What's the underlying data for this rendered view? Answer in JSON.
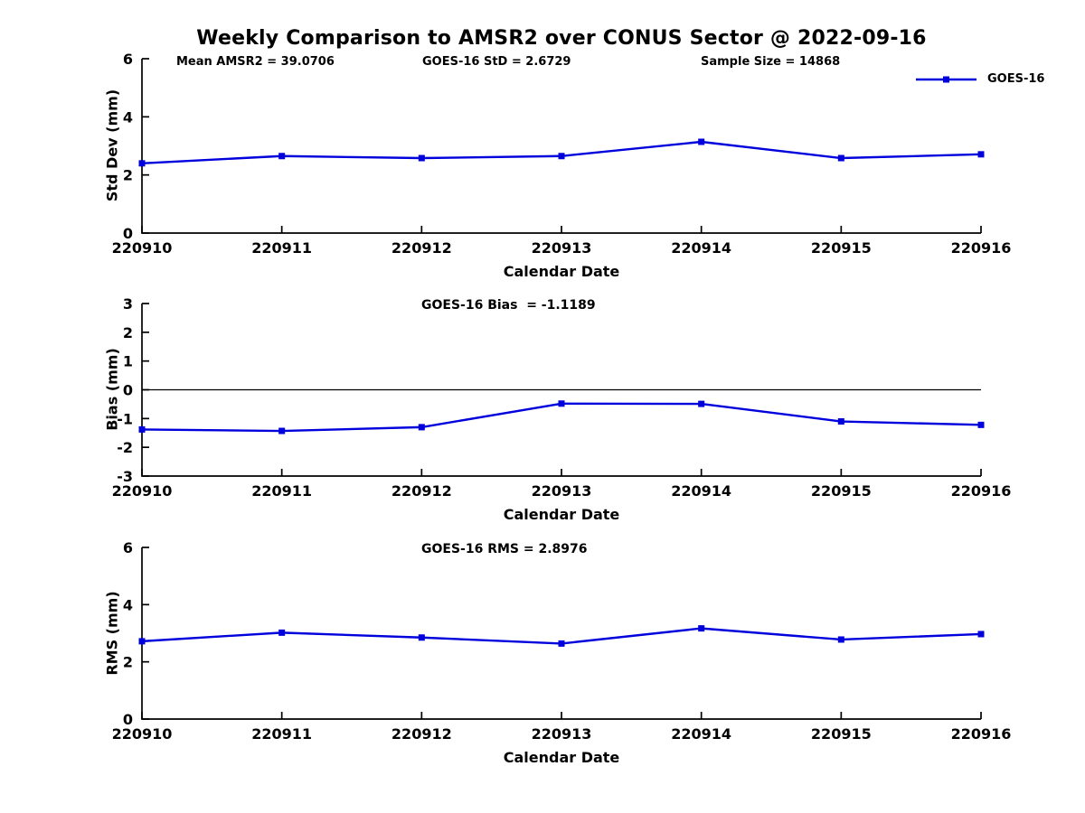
{
  "title": "Weekly Comparison to AMSR2 over CONUS Sector @ 2022-09-16",
  "colors": {
    "series": "#0000dd",
    "axis": "#000000",
    "text": "#000000",
    "background": "#ffffff"
  },
  "legend": {
    "label": "GOES-16"
  },
  "chart_data": [
    {
      "type": "line",
      "name": "std-dev",
      "ylabel": "Std Dev (mm)",
      "xlabel": "Calendar Date",
      "ylim": [
        0,
        6
      ],
      "yticks": [
        0,
        2,
        4,
        6
      ],
      "categories": [
        "220910",
        "220911",
        "220912",
        "220913",
        "220914",
        "220915",
        "220916"
      ],
      "series": [
        {
          "name": "GOES-16",
          "values": [
            2.4,
            2.65,
            2.58,
            2.65,
            3.14,
            2.58,
            2.71
          ]
        }
      ],
      "annotations": [
        "Mean AMSR2 = 39.0706",
        "GOES-16 StD = 2.6729",
        "Sample Size = 14868"
      ],
      "legend_entries": [
        "GOES-16"
      ],
      "legend_position": "upper-right",
      "grid": false,
      "zero_line": false
    },
    {
      "type": "line",
      "name": "bias",
      "ylabel": "Bias (mm)",
      "xlabel": "Calendar Date",
      "ylim": [
        -3,
        3
      ],
      "yticks": [
        -3,
        -2,
        -1,
        0,
        1,
        2,
        3
      ],
      "categories": [
        "220910",
        "220911",
        "220912",
        "220913",
        "220914",
        "220915",
        "220916"
      ],
      "series": [
        {
          "name": "GOES-16",
          "values": [
            -1.38,
            -1.43,
            -1.3,
            -0.48,
            -0.49,
            -1.1,
            -1.22
          ]
        }
      ],
      "annotations": [
        "GOES-16 Bias  = -1.1189"
      ],
      "grid": false,
      "zero_line": true
    },
    {
      "type": "line",
      "name": "rms",
      "ylabel": "RMS (mm)",
      "xlabel": "Calendar Date",
      "ylim": [
        0,
        6
      ],
      "yticks": [
        0,
        2,
        4,
        6
      ],
      "categories": [
        "220910",
        "220911",
        "220912",
        "220913",
        "220914",
        "220915",
        "220916"
      ],
      "series": [
        {
          "name": "GOES-16",
          "values": [
            2.72,
            3.02,
            2.85,
            2.64,
            3.17,
            2.78,
            2.97
          ]
        }
      ],
      "annotations": [
        "GOES-16 RMS = 2.8976"
      ],
      "grid": false,
      "zero_line": false
    }
  ]
}
